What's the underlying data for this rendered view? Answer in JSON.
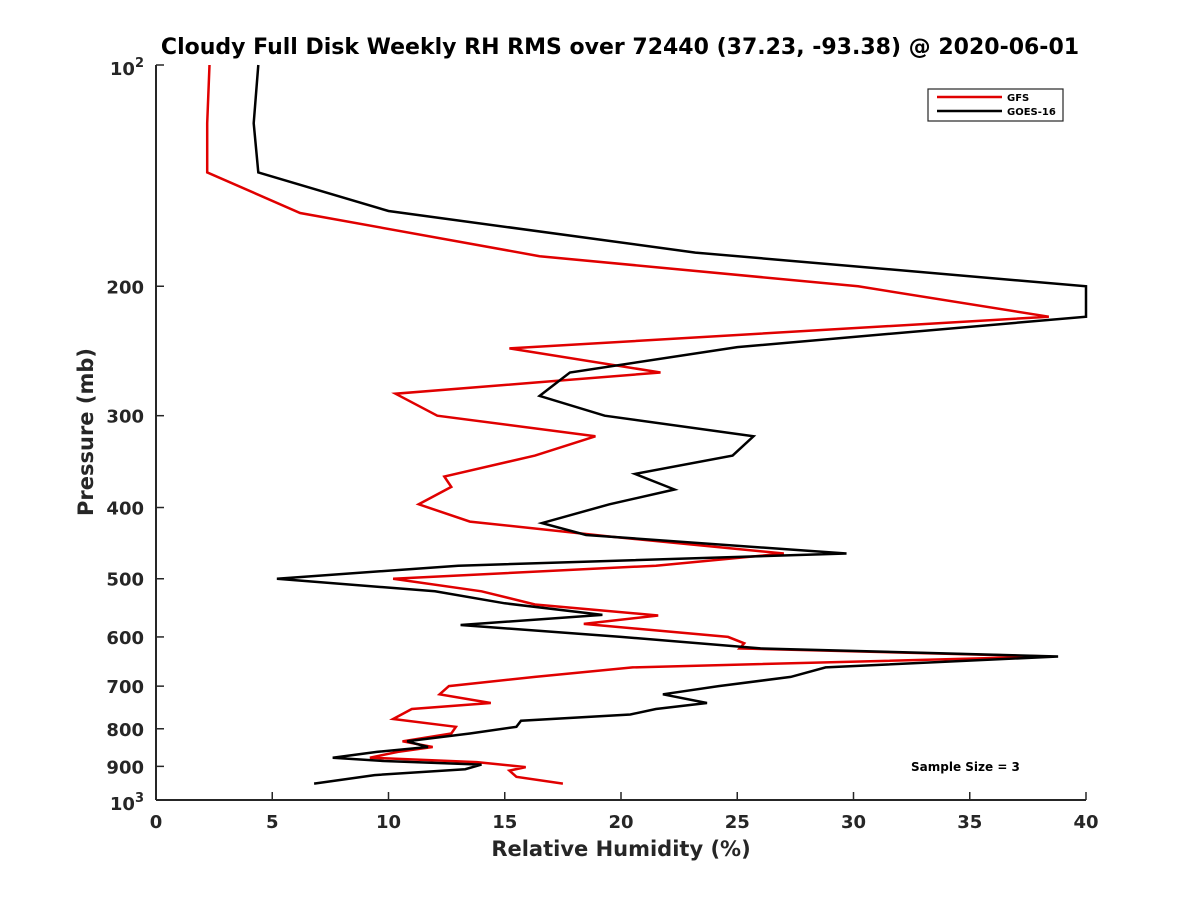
{
  "chart_data": {
    "type": "line",
    "title": "Cloudy Full Disk Weekly RH RMS over 72440 (37.23, -93.38) @ 2020-06-01",
    "xlabel": "Relative Humidity (%)",
    "ylabel": "Pressure (mb)",
    "xlim": [
      0,
      40
    ],
    "ylim": [
      100,
      1000
    ],
    "y_scale": "log",
    "y_reversed": true,
    "grid": false,
    "legend_position": "top-right",
    "annotation": "Sample Size = 3",
    "x_ticks": [
      {
        "value": 0,
        "label": "0"
      },
      {
        "value": 5,
        "label": "5"
      },
      {
        "value": 10,
        "label": "10"
      },
      {
        "value": 15,
        "label": "15"
      },
      {
        "value": 20,
        "label": "20"
      },
      {
        "value": 25,
        "label": "25"
      },
      {
        "value": 30,
        "label": "30"
      },
      {
        "value": 35,
        "label": "35"
      },
      {
        "value": 40,
        "label": "40"
      }
    ],
    "y_ticks": [
      {
        "value": 100,
        "base": "10",
        "exp": "2"
      },
      {
        "value": 200,
        "label": "200"
      },
      {
        "value": 300,
        "label": "300"
      },
      {
        "value": 400,
        "label": "400"
      },
      {
        "value": 500,
        "label": "500"
      },
      {
        "value": 600,
        "label": "600"
      },
      {
        "value": 700,
        "label": "700"
      },
      {
        "value": 800,
        "label": "800"
      },
      {
        "value": 900,
        "label": "900"
      },
      {
        "value": 1000,
        "base": "10",
        "exp": "3"
      }
    ],
    "series": [
      {
        "name": "GFS",
        "color": "#e00000",
        "points": [
          [
            2.3,
            100
          ],
          [
            2.2,
            120
          ],
          [
            2.2,
            140
          ],
          [
            6.2,
            159
          ],
          [
            16.5,
            182
          ],
          [
            30.2,
            200
          ],
          [
            38.4,
            220
          ],
          [
            15.2,
            243
          ],
          [
            21.7,
            262
          ],
          [
            10.3,
            280
          ],
          [
            12.1,
            300
          ],
          [
            18.9,
            320
          ],
          [
            16.3,
            340
          ],
          [
            12.4,
            363
          ],
          [
            12.7,
            375
          ],
          [
            11.3,
            396
          ],
          [
            13.5,
            418
          ],
          [
            19.5,
            438
          ],
          [
            27.0,
            462
          ],
          [
            21.5,
            480
          ],
          [
            10.2,
            500
          ],
          [
            14.0,
            520
          ],
          [
            16.3,
            542
          ],
          [
            21.6,
            561
          ],
          [
            18.4,
            576
          ],
          [
            24.6,
            600
          ],
          [
            25.3,
            612
          ],
          [
            25.1,
            622
          ],
          [
            38.5,
            638
          ],
          [
            20.5,
            660
          ],
          [
            16.3,
            680
          ],
          [
            12.6,
            700
          ],
          [
            12.2,
            718
          ],
          [
            14.4,
            738
          ],
          [
            11.0,
            752
          ],
          [
            10.2,
            776
          ],
          [
            12.9,
            795
          ],
          [
            12.7,
            812
          ],
          [
            10.6,
            832
          ],
          [
            11.9,
            847
          ],
          [
            10.4,
            860
          ],
          [
            9.2,
            876
          ],
          [
            13.8,
            888
          ],
          [
            15.9,
            902
          ],
          [
            15.2,
            912
          ],
          [
            15.5,
            930
          ],
          [
            17.5,
            950
          ]
        ]
      },
      {
        "name": "GOES-16",
        "color": "#000000",
        "points": [
          [
            4.4,
            100
          ],
          [
            4.2,
            120
          ],
          [
            4.4,
            140
          ],
          [
            10.0,
            158
          ],
          [
            23.2,
            180
          ],
          [
            40.0,
            200
          ],
          [
            40.0,
            220
          ],
          [
            25.0,
            242
          ],
          [
            17.8,
            262
          ],
          [
            16.5,
            282
          ],
          [
            19.3,
            300
          ],
          [
            25.7,
            320
          ],
          [
            24.8,
            340
          ],
          [
            20.6,
            360
          ],
          [
            22.3,
            378
          ],
          [
            19.5,
            396
          ],
          [
            16.6,
            420
          ],
          [
            18.5,
            436
          ],
          [
            29.7,
            462
          ],
          [
            13.0,
            480
          ],
          [
            5.2,
            500
          ],
          [
            12.0,
            520
          ],
          [
            15.0,
            540
          ],
          [
            19.2,
            560
          ],
          [
            13.1,
            578
          ],
          [
            20.0,
            600
          ],
          [
            26.0,
            622
          ],
          [
            38.8,
            638
          ],
          [
            28.8,
            660
          ],
          [
            27.3,
            680
          ],
          [
            24.2,
            700
          ],
          [
            21.8,
            718
          ],
          [
            23.7,
            738
          ],
          [
            21.5,
            752
          ],
          [
            20.4,
            765
          ],
          [
            15.7,
            780
          ],
          [
            15.5,
            795
          ],
          [
            13.5,
            812
          ],
          [
            10.8,
            832
          ],
          [
            11.7,
            847
          ],
          [
            9.5,
            860
          ],
          [
            7.6,
            876
          ],
          [
            9.8,
            885
          ],
          [
            14.0,
            895
          ],
          [
            13.3,
            908
          ],
          [
            9.4,
            925
          ],
          [
            6.8,
            950
          ]
        ]
      }
    ]
  }
}
